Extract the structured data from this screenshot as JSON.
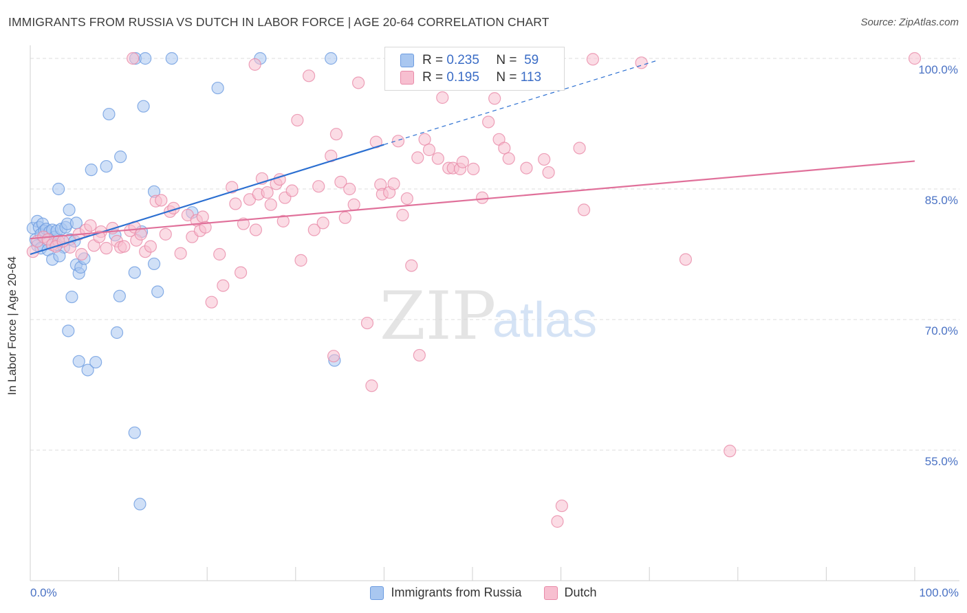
{
  "title": "IMMIGRANTS FROM RUSSIA VS DUTCH IN LABOR FORCE | AGE 20-64 CORRELATION CHART",
  "source": "Source: ZipAtlas.com",
  "watermark": {
    "zip": "ZIP",
    "atlas": "atlas"
  },
  "legend": {
    "r_label": "R =",
    "n_label": "N =",
    "rows": [
      {
        "r": "0.235",
        "n": "59"
      },
      {
        "r": "0.195",
        "n": "113"
      }
    ]
  },
  "chart_data": {
    "type": "scatter",
    "title": "IMMIGRANTS FROM RUSSIA VS DUTCH IN LABOR FORCE | AGE 20-64 CORRELATION CHART",
    "xlabel": "",
    "ylabel": "In Labor Force | Age 20-64",
    "xlim": [
      0,
      100
    ],
    "ylim": [
      40,
      101.5
    ],
    "x_tick_labels": [
      "0.0%",
      "100.0%"
    ],
    "y_ticks": [
      {
        "value": 100,
        "label": "100.0%"
      },
      {
        "value": 85,
        "label": "85.0%"
      },
      {
        "value": 70,
        "label": "70.0%"
      },
      {
        "value": 55,
        "label": "55.0%"
      }
    ],
    "grid": true,
    "series": [
      {
        "name": "Immigrants from Russia",
        "color": "#6b9be0",
        "fill": "#a9c7f0",
        "r": 0.235,
        "n": 59,
        "trend": {
          "x0": 0,
          "y0": 77.5,
          "x1": 40,
          "y1": 90.1,
          "dashed_to_x": 71,
          "dashed_to_y": 99.8
        },
        "points": [
          [
            0.3,
            80.5
          ],
          [
            0.6,
            79.2
          ],
          [
            0.8,
            81.3
          ],
          [
            1.0,
            80.6
          ],
          [
            1.2,
            79.8
          ],
          [
            1.4,
            81.0
          ],
          [
            1.6,
            80.2
          ],
          [
            1.8,
            80.4
          ],
          [
            2.0,
            78.8
          ],
          [
            2.2,
            80.1
          ],
          [
            2.5,
            80.3
          ],
          [
            2.8,
            79.5
          ],
          [
            3.0,
            80.2
          ],
          [
            3.2,
            79.0
          ],
          [
            3.5,
            80.4
          ],
          [
            3.8,
            78.3
          ],
          [
            0.8,
            78.5
          ],
          [
            1.2,
            78.2
          ],
          [
            2.0,
            78.0
          ],
          [
            2.5,
            76.9
          ],
          [
            3.0,
            78.6
          ],
          [
            3.3,
            77.3
          ],
          [
            4.0,
            80.6
          ],
          [
            4.2,
            81.0
          ],
          [
            4.5,
            79.2
          ],
          [
            5.0,
            79.0
          ],
          [
            5.2,
            76.3
          ],
          [
            5.5,
            75.3
          ],
          [
            5.7,
            76.0
          ],
          [
            6.1,
            77.0
          ],
          [
            4.4,
            82.6
          ],
          [
            5.2,
            81.1
          ],
          [
            3.2,
            85.0
          ],
          [
            6.9,
            87.2
          ],
          [
            8.6,
            87.6
          ],
          [
            10.2,
            88.7
          ],
          [
            8.9,
            93.6
          ],
          [
            12.8,
            94.5
          ],
          [
            14.0,
            84.7
          ],
          [
            11.8,
            75.4
          ],
          [
            14.0,
            76.4
          ],
          [
            14.4,
            73.2
          ],
          [
            10.1,
            72.7
          ],
          [
            4.7,
            72.6
          ],
          [
            4.3,
            68.7
          ],
          [
            9.8,
            68.5
          ],
          [
            5.5,
            65.2
          ],
          [
            6.5,
            64.2
          ],
          [
            7.4,
            65.1
          ],
          [
            11.8,
            57.0
          ],
          [
            12.4,
            48.8
          ],
          [
            9.6,
            79.7
          ],
          [
            12.6,
            80.1
          ],
          [
            18.3,
            82.3
          ],
          [
            21.2,
            96.6
          ],
          [
            11.9,
            100
          ],
          [
            13.0,
            100
          ],
          [
            16.0,
            100
          ],
          [
            26.0,
            100
          ],
          [
            34.0,
            100
          ],
          [
            34.4,
            65.3
          ]
        ]
      },
      {
        "name": "Dutch",
        "color": "#e889a7",
        "fill": "#f7bfd0",
        "r": 0.195,
        "n": 113,
        "trend": {
          "x0": 0,
          "y0": 79.3,
          "x1": 100,
          "y1": 88.2
        },
        "points": [
          [
            0.3,
            77.8
          ],
          [
            0.8,
            79.0
          ],
          [
            1.5,
            79.5
          ],
          [
            2.0,
            79.2
          ],
          [
            2.5,
            78.6
          ],
          [
            3.2,
            79.0
          ],
          [
            4.5,
            78.3
          ],
          [
            5.5,
            79.8
          ],
          [
            6.3,
            80.3
          ],
          [
            6.8,
            80.8
          ],
          [
            7.2,
            78.5
          ],
          [
            8.0,
            80.1
          ],
          [
            8.6,
            78.2
          ],
          [
            9.3,
            80.5
          ],
          [
            9.8,
            79.0
          ],
          [
            10.2,
            78.3
          ],
          [
            10.6,
            78.4
          ],
          [
            11.3,
            80.2
          ],
          [
            11.8,
            80.6
          ],
          [
            12.0,
            79.1
          ],
          [
            12.5,
            79.8
          ],
          [
            13.0,
            77.8
          ],
          [
            13.6,
            78.4
          ],
          [
            14.2,
            83.6
          ],
          [
            14.8,
            83.7
          ],
          [
            15.3,
            79.8
          ],
          [
            15.8,
            82.4
          ],
          [
            16.2,
            82.8
          ],
          [
            17.0,
            77.6
          ],
          [
            17.8,
            82.0
          ],
          [
            18.3,
            79.5
          ],
          [
            18.8,
            81.4
          ],
          [
            19.2,
            80.2
          ],
          [
            19.5,
            81.8
          ],
          [
            19.8,
            80.6
          ],
          [
            20.5,
            72.0
          ],
          [
            21.4,
            77.5
          ],
          [
            21.8,
            73.9
          ],
          [
            22.8,
            85.2
          ],
          [
            23.2,
            83.3
          ],
          [
            23.8,
            75.4
          ],
          [
            24.1,
            81.0
          ],
          [
            24.8,
            83.8
          ],
          [
            25.5,
            80.3
          ],
          [
            25.8,
            84.4
          ],
          [
            26.2,
            86.2
          ],
          [
            26.8,
            84.6
          ],
          [
            27.2,
            83.2
          ],
          [
            27.8,
            85.6
          ],
          [
            28.2,
            86.1
          ],
          [
            28.6,
            81.3
          ],
          [
            28.8,
            84.0
          ],
          [
            29.6,
            84.8
          ],
          [
            30.2,
            92.9
          ],
          [
            30.6,
            76.8
          ],
          [
            31.5,
            98.0
          ],
          [
            32.1,
            80.3
          ],
          [
            32.6,
            85.3
          ],
          [
            33.1,
            81.1
          ],
          [
            34.0,
            88.8
          ],
          [
            34.6,
            91.3
          ],
          [
            35.1,
            85.8
          ],
          [
            35.6,
            81.7
          ],
          [
            36.1,
            85.0
          ],
          [
            36.6,
            83.2
          ],
          [
            37.1,
            97.2
          ],
          [
            38.1,
            69.6
          ],
          [
            38.6,
            62.4
          ],
          [
            39.1,
            90.4
          ],
          [
            39.6,
            85.5
          ],
          [
            39.8,
            84.4
          ],
          [
            40.6,
            84.6
          ],
          [
            41.1,
            85.6
          ],
          [
            41.6,
            90.5
          ],
          [
            42.1,
            82.0
          ],
          [
            42.6,
            83.9
          ],
          [
            43.1,
            76.2
          ],
          [
            43.8,
            88.6
          ],
          [
            44.0,
            65.9
          ],
          [
            44.6,
            90.7
          ],
          [
            45.1,
            89.5
          ],
          [
            46.1,
            88.5
          ],
          [
            46.6,
            95.5
          ],
          [
            47.3,
            87.4
          ],
          [
            47.8,
            87.4
          ],
          [
            48.6,
            87.3
          ],
          [
            48.9,
            88.1
          ],
          [
            50.1,
            87.3
          ],
          [
            51.1,
            84.0
          ],
          [
            51.8,
            92.7
          ],
          [
            52.5,
            95.4
          ],
          [
            53.0,
            90.7
          ],
          [
            53.6,
            89.7
          ],
          [
            54.1,
            88.5
          ],
          [
            56.1,
            87.4
          ],
          [
            58.1,
            88.4
          ],
          [
            58.6,
            86.9
          ],
          [
            60.1,
            48.6
          ],
          [
            59.6,
            46.8
          ],
          [
            62.1,
            89.7
          ],
          [
            62.6,
            82.6
          ],
          [
            63.6,
            99.9
          ],
          [
            69.1,
            99.5
          ],
          [
            74.1,
            76.9
          ],
          [
            79.1,
            54.9
          ],
          [
            100,
            100
          ],
          [
            11.6,
            100
          ],
          [
            25.4,
            99.3
          ],
          [
            34.3,
            65.8
          ],
          [
            5.8,
            77.5
          ],
          [
            2.9,
            78.4
          ],
          [
            3.7,
            79.0
          ],
          [
            7.8,
            79.5
          ]
        ]
      }
    ]
  },
  "bottom_legend": [
    "Immigrants from Russia",
    "Dutch"
  ]
}
